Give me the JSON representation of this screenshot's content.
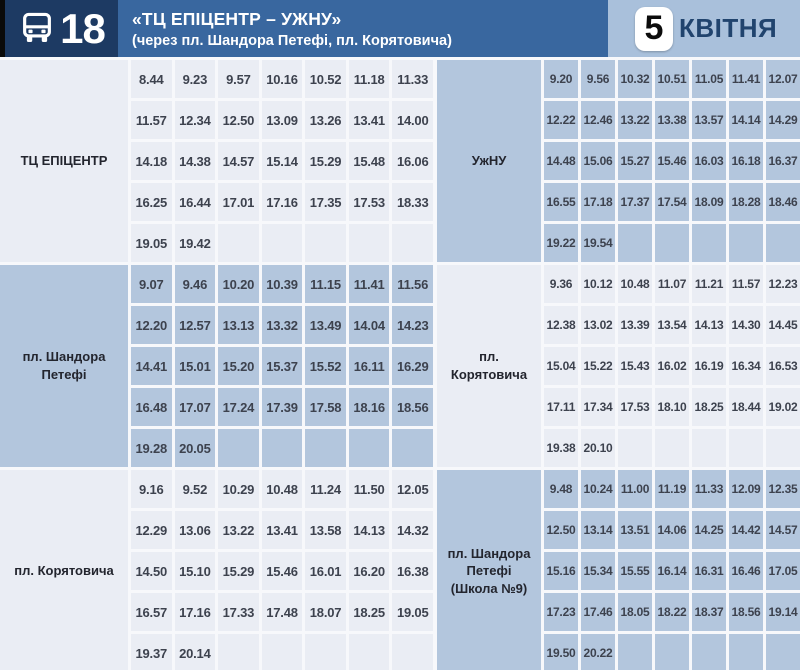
{
  "header": {
    "route_number": "18",
    "title": "«ТЦ ЕПІЦЕНТР – УЖНУ»",
    "subtitle": "(через пл. Шандора Петефі, пл. Корятовича)",
    "date_day": "5",
    "date_month": "КВІТНЯ"
  },
  "colors": {
    "header_dark": "#1d3a63",
    "header_mid": "#39679f",
    "header_light": "#a9c0db",
    "section_light": "#eaedf4",
    "section_blue": "#b3c6dd",
    "month_text": "#21446e"
  },
  "timetable": {
    "sections": [
      {
        "left": {
          "stop": "ТЦ ЕПІЦЕНТР",
          "tone": "light",
          "rows": [
            [
              "8.44",
              "9.23",
              "9.57",
              "10.16",
              "10.52",
              "11.18",
              "11.33"
            ],
            [
              "11.57",
              "12.34",
              "12.50",
              "13.09",
              "13.26",
              "13.41",
              "14.00"
            ],
            [
              "14.18",
              "14.38",
              "14.57",
              "15.14",
              "15.29",
              "15.48",
              "16.06"
            ],
            [
              "16.25",
              "16.44",
              "17.01",
              "17.16",
              "17.35",
              "17.53",
              "18.33"
            ],
            [
              "19.05",
              "19.42",
              "",
              "",
              "",
              "",
              ""
            ]
          ]
        },
        "right": {
          "stop": "УжНУ",
          "tone": "blue",
          "rows": [
            [
              "9.20",
              "9.56",
              "10.32",
              "10.51",
              "11.05",
              "11.41",
              "12.07"
            ],
            [
              "12.22",
              "12.46",
              "13.22",
              "13.38",
              "13.57",
              "14.14",
              "14.29"
            ],
            [
              "14.48",
              "15.06",
              "15.27",
              "15.46",
              "16.03",
              "16.18",
              "16.37"
            ],
            [
              "16.55",
              "17.18",
              "17.37",
              "17.54",
              "18.09",
              "18.28",
              "18.46"
            ],
            [
              "19.22",
              "19.54",
              "",
              "",
              "",
              "",
              ""
            ]
          ]
        }
      },
      {
        "left": {
          "stop": "пл. Шандора Петефі",
          "tone": "blue",
          "rows": [
            [
              "9.07",
              "9.46",
              "10.20",
              "10.39",
              "11.15",
              "11.41",
              "11.56"
            ],
            [
              "12.20",
              "12.57",
              "13.13",
              "13.32",
              "13.49",
              "14.04",
              "14.23"
            ],
            [
              "14.41",
              "15.01",
              "15.20",
              "15.37",
              "15.52",
              "16.11",
              "16.29"
            ],
            [
              "16.48",
              "17.07",
              "17.24",
              "17.39",
              "17.58",
              "18.16",
              "18.56"
            ],
            [
              "19.28",
              "20.05",
              "",
              "",
              "",
              "",
              ""
            ]
          ]
        },
        "right": {
          "stop": "пл. Корятовича",
          "tone": "light",
          "rows": [
            [
              "9.36",
              "10.12",
              "10.48",
              "11.07",
              "11.21",
              "11.57",
              "12.23"
            ],
            [
              "12.38",
              "13.02",
              "13.39",
              "13.54",
              "14.13",
              "14.30",
              "14.45"
            ],
            [
              "15.04",
              "15.22",
              "15.43",
              "16.02",
              "16.19",
              "16.34",
              "16.53"
            ],
            [
              "17.11",
              "17.34",
              "17.53",
              "18.10",
              "18.25",
              "18.44",
              "19.02"
            ],
            [
              "19.38",
              "20.10",
              "",
              "",
              "",
              "",
              ""
            ]
          ]
        }
      },
      {
        "left": {
          "stop": "пл. Корятовича",
          "tone": "light",
          "rows": [
            [
              "9.16",
              "9.52",
              "10.29",
              "10.48",
              "11.24",
              "11.50",
              "12.05"
            ],
            [
              "12.29",
              "13.06",
              "13.22",
              "13.41",
              "13.58",
              "14.13",
              "14.32"
            ],
            [
              "14.50",
              "15.10",
              "15.29",
              "15.46",
              "16.01",
              "16.20",
              "16.38"
            ],
            [
              "16.57",
              "17.16",
              "17.33",
              "17.48",
              "18.07",
              "18.25",
              "19.05"
            ],
            [
              "19.37",
              "20.14",
              "",
              "",
              "",
              "",
              ""
            ]
          ]
        },
        "right": {
          "stop": "пл. Шандора Петефі (Школа №9)",
          "tone": "blue",
          "rows": [
            [
              "9.48",
              "10.24",
              "11.00",
              "11.19",
              "11.33",
              "12.09",
              "12.35"
            ],
            [
              "12.50",
              "13.14",
              "13.51",
              "14.06",
              "14.25",
              "14.42",
              "14.57"
            ],
            [
              "15.16",
              "15.34",
              "15.55",
              "16.14",
              "16.31",
              "16.46",
              "17.05"
            ],
            [
              "17.23",
              "17.46",
              "18.05",
              "18.22",
              "18.37",
              "18.56",
              "19.14"
            ],
            [
              "19.50",
              "20.22",
              "",
              "",
              "",
              "",
              ""
            ]
          ]
        }
      }
    ]
  }
}
